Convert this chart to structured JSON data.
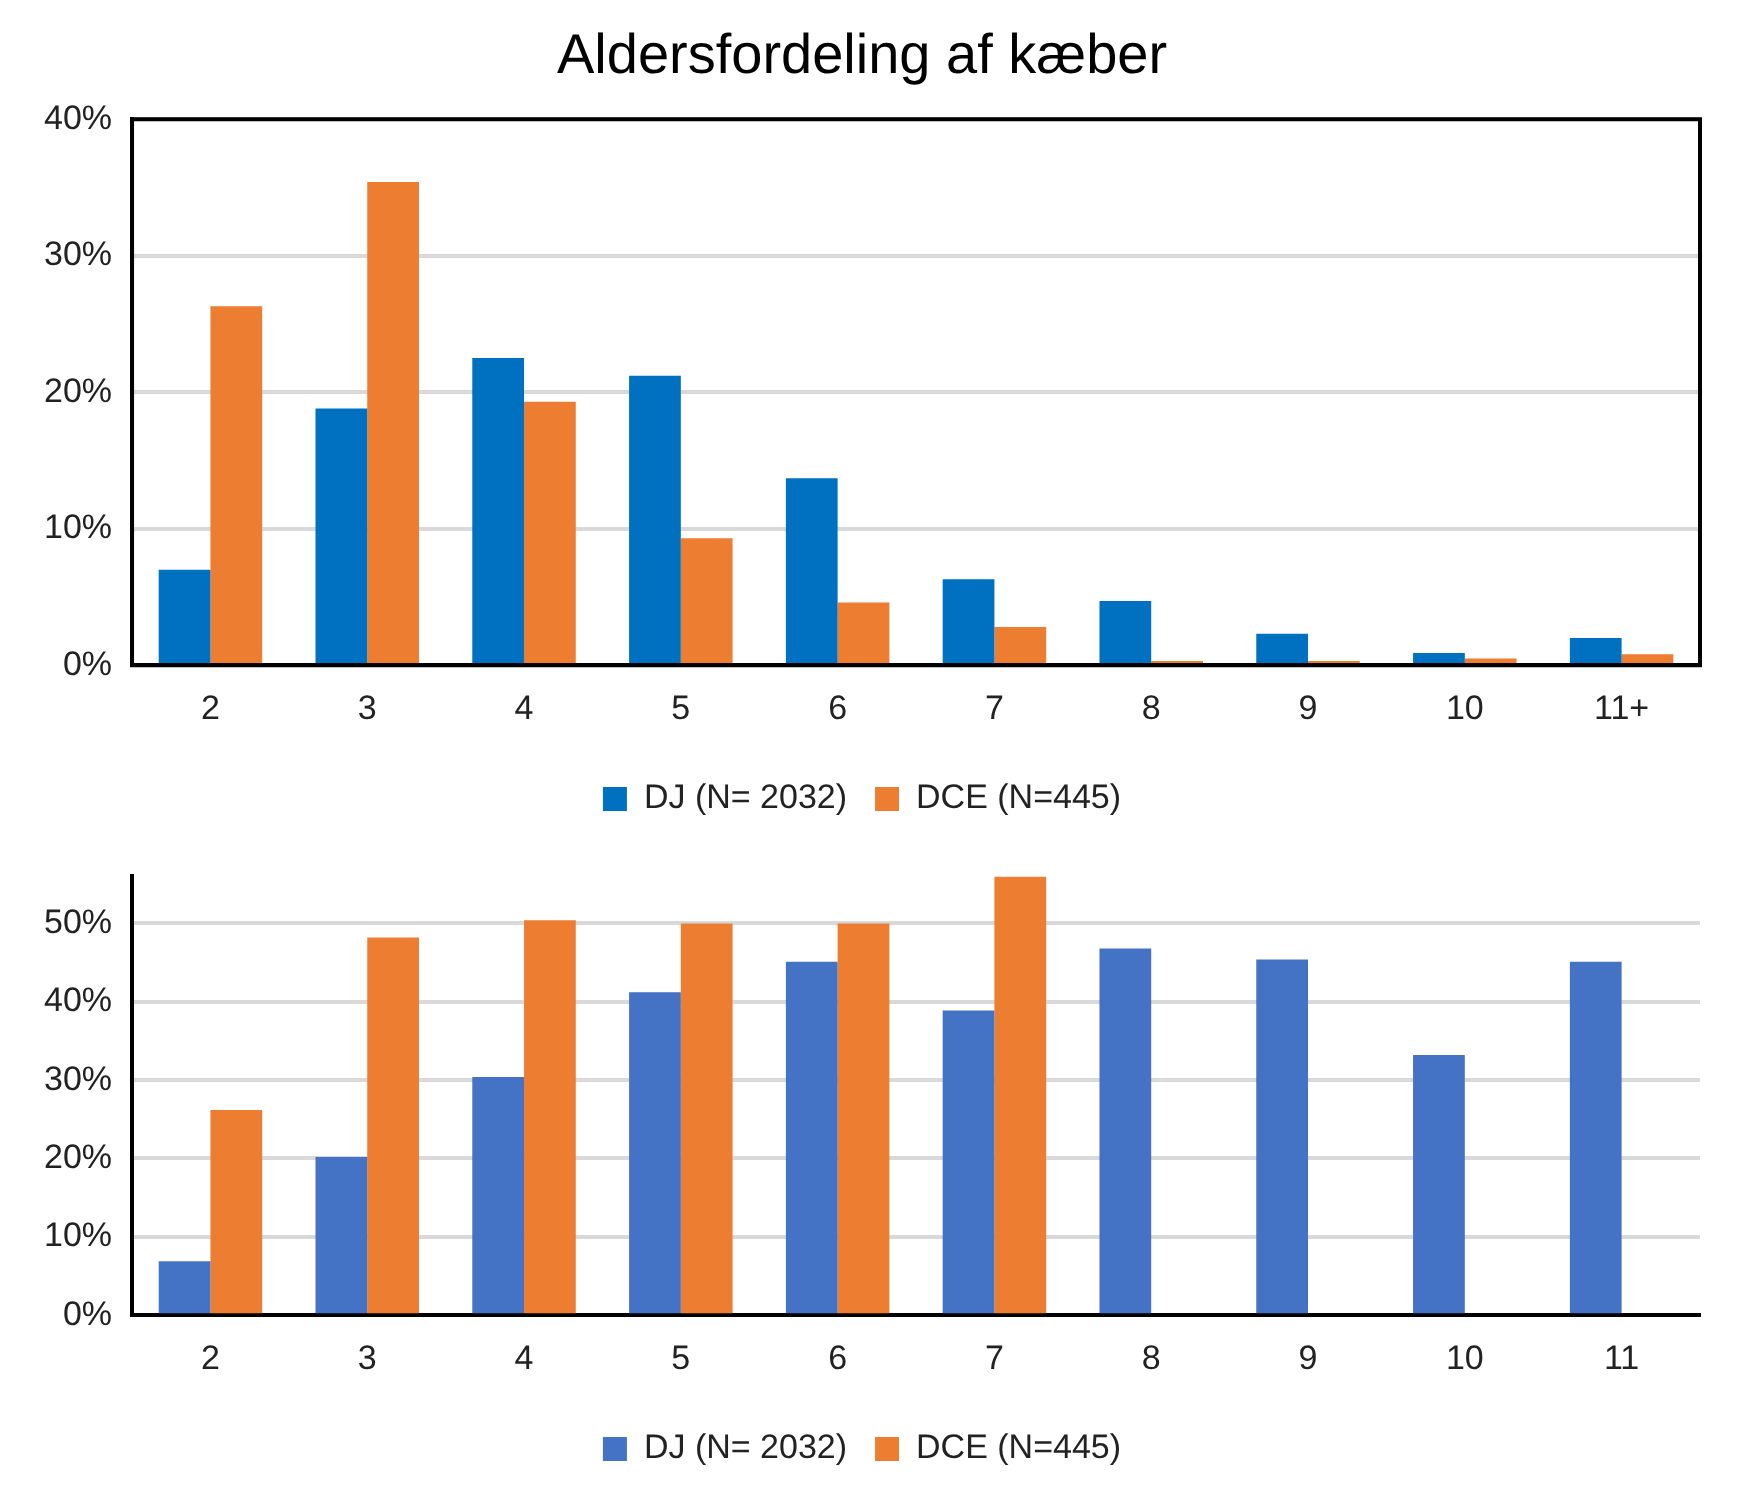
{
  "chart_data": [
    {
      "type": "bar",
      "title": "Aldersfordeling af kæber",
      "categories": [
        "2",
        "3",
        "4",
        "5",
        "6",
        "7",
        "8",
        "9",
        "10",
        "11+"
      ],
      "series": [
        {
          "name": "DJ (N= 2032)",
          "color": "#0070c0",
          "values": [
            7.0,
            18.8,
            22.5,
            21.2,
            13.7,
            6.3,
            4.7,
            2.3,
            0.9,
            2.0
          ]
        },
        {
          "name": "DCE (N=445)",
          "color": "#ed7d31",
          "values": [
            26.3,
            35.4,
            19.3,
            9.3,
            4.6,
            2.8,
            0.3,
            0.3,
            0.5,
            0.8
          ]
        }
      ],
      "ylim": [
        0,
        40
      ],
      "yticks": [
        {
          "value": 0,
          "label": "0%"
        },
        {
          "value": 10,
          "label": "10%"
        },
        {
          "value": 20,
          "label": "20%"
        },
        {
          "value": 30,
          "label": "30%"
        },
        {
          "value": 40,
          "label": "40%"
        }
      ],
      "grid": "y",
      "legend": "bottom"
    },
    {
      "type": "bar",
      "categories": [
        "2",
        "3",
        "4",
        "5",
        "6",
        "7",
        "8",
        "9",
        "10",
        "11"
      ],
      "series": [
        {
          "name": "DJ (N= 2032)",
          "color": "#4472c4",
          "values": [
            6.9,
            20.2,
            30.4,
            41.2,
            45.1,
            38.9,
            46.8,
            45.4,
            33.2,
            45.1
          ]
        },
        {
          "name": "DCE (N=445)",
          "color": "#ed7d31",
          "values": [
            26.2,
            48.2,
            50.4,
            50.0,
            50.0,
            56.0,
            null,
            null,
            null,
            null
          ]
        }
      ],
      "ylim": [
        0,
        56
      ],
      "yticks": [
        {
          "value": 0,
          "label": "0%"
        },
        {
          "value": 10,
          "label": "10%"
        },
        {
          "value": 20,
          "label": "20%"
        },
        {
          "value": 30,
          "label": "30%"
        },
        {
          "value": 40,
          "label": "40%"
        },
        {
          "value": 50,
          "label": "50%"
        }
      ],
      "grid": "y",
      "legend": "bottom"
    }
  ]
}
